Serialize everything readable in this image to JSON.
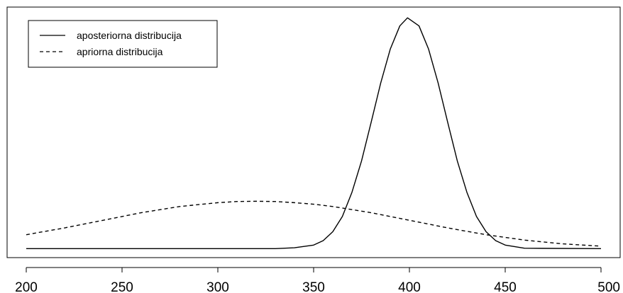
{
  "chart_data": {
    "type": "line",
    "title": "",
    "xlabel": "",
    "ylabel": "",
    "xlim": [
      190,
      510
    ],
    "ylim": [
      -0.001,
      0.027
    ],
    "x_ticks": [
      200,
      250,
      300,
      350,
      400,
      450,
      500
    ],
    "x_tick_labels": [
      "200",
      "250",
      "300",
      "350",
      "400",
      "450",
      "500"
    ],
    "y_axis_shown": false,
    "grid": false,
    "legend_position": "top-left",
    "series": [
      {
        "name": "aposteriorna distribucija",
        "line_style": "solid",
        "color": "#000000",
        "x": [
          200,
          330,
          340,
          350,
          355,
          360,
          365,
          370,
          375,
          380,
          385,
          390,
          395,
          399,
          405,
          410,
          415,
          420,
          425,
          430,
          435,
          440,
          445,
          450,
          460,
          500
        ],
        "y": [
          0.0,
          0.0,
          0.0001,
          0.0004,
          0.0009,
          0.0019,
          0.0036,
          0.0063,
          0.0098,
          0.0141,
          0.0185,
          0.0223,
          0.0249,
          0.0258,
          0.0249,
          0.0223,
          0.0185,
          0.0141,
          0.0098,
          0.0063,
          0.0036,
          0.0019,
          0.0009,
          0.0004,
          5e-05,
          0.0
        ]
      },
      {
        "name": "apriorna distribucija",
        "line_style": "dashed",
        "color": "#000000",
        "x": [
          200,
          220,
          240,
          260,
          280,
          300,
          310,
          320,
          330,
          340,
          350,
          360,
          380,
          400,
          420,
          440,
          460,
          480,
          500
        ],
        "y": [
          0.00156,
          0.00232,
          0.00317,
          0.00402,
          0.00471,
          0.00514,
          0.00527,
          0.0053,
          0.00527,
          0.00514,
          0.00497,
          0.00471,
          0.00402,
          0.00317,
          0.00232,
          0.00156,
          0.00096,
          0.00054,
          0.00028
        ]
      }
    ]
  }
}
